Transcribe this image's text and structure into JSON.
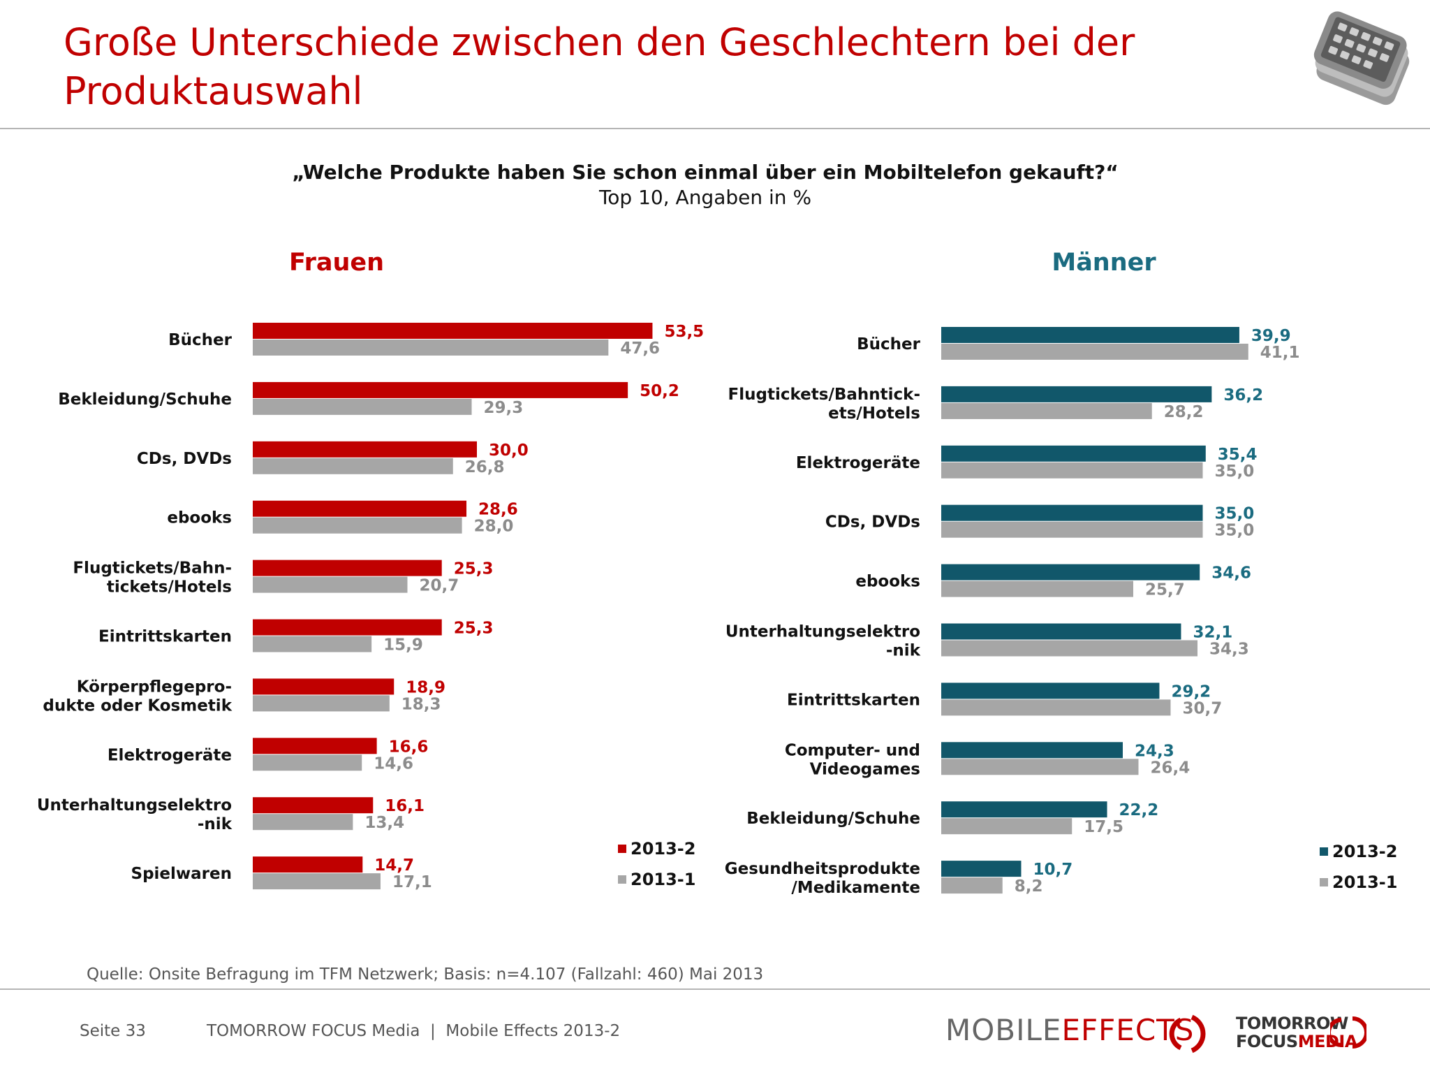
{
  "header": {
    "title": "Große Unterschiede zwischen den Geschlechtern bei der Produktauswahl"
  },
  "question": "„Welche Produkte haben Sie schon einmal über ein Mobiltelefon gekauft?“",
  "subtitle": "Top 10, Angaben in %",
  "colors": {
    "women_2013_2": "#c00000",
    "men_2013_2": "#11576a",
    "men_label": "#1a6b80",
    "series_2013_1": "#a6a6a6",
    "label_2013_1": "#8c8c8c"
  },
  "chart_data": [
    {
      "type": "bar",
      "orientation": "horizontal",
      "title": "Frauen",
      "categories": [
        "Bücher",
        "Bekleidung/Schuhe",
        "CDs, DVDs",
        "ebooks",
        "Flugtickets/Bahn-\ntickets/Hotels",
        "Eintrittskarten",
        "Körperpflegepro-\ndukte oder Kosmetik",
        "Elektrogeräte",
        "Unterhaltungselektro\n-nik",
        "Spielwaren"
      ],
      "series": [
        {
          "name": "2013-2",
          "values": [
            53.5,
            50.2,
            30.0,
            28.6,
            25.3,
            25.3,
            18.9,
            16.6,
            16.1,
            14.7
          ],
          "labels": [
            "53,5",
            "50,2",
            "30,0",
            "28,6",
            "25,3",
            "25,3",
            "18,9",
            "16,6",
            "16,1",
            "14,7"
          ]
        },
        {
          "name": "2013-1",
          "values": [
            47.6,
            29.3,
            26.8,
            28.0,
            20.7,
            15.9,
            18.3,
            14.6,
            13.4,
            17.1
          ],
          "labels": [
            "47,6",
            "29,3",
            "26,8",
            "28,0",
            "20,7",
            "15,9",
            "18,3",
            "14,6",
            "13,4",
            "17,1"
          ]
        }
      ],
      "xlim": [
        0,
        60
      ],
      "legend": "bottom-right"
    },
    {
      "type": "bar",
      "orientation": "horizontal",
      "title": "Männer",
      "categories": [
        "Bücher",
        "Flugtickets/Bahntick-\nets/Hotels",
        "Elektrogeräte",
        "CDs, DVDs",
        "ebooks",
        "Unterhaltungselektro\n-nik",
        "Eintrittskarten",
        "Computer- und\nVideogames",
        "Bekleidung/Schuhe",
        "Gesundheitsprodukte\n/Medikamente"
      ],
      "series": [
        {
          "name": "2013-2",
          "values": [
            39.9,
            36.2,
            35.4,
            35.0,
            34.6,
            32.1,
            29.2,
            24.3,
            22.2,
            10.7
          ],
          "labels": [
            "39,9",
            "36,2",
            "35,4",
            "35,0",
            "34,6",
            "32,1",
            "29,2",
            "24,3",
            "22,2",
            "10,7"
          ]
        },
        {
          "name": "2013-1",
          "values": [
            41.1,
            28.2,
            35.0,
            35.0,
            25.7,
            34.3,
            30.7,
            26.4,
            17.5,
            8.2
          ],
          "labels": [
            "41,1",
            "28,2",
            "35,0",
            "35,0",
            "25,7",
            "34,3",
            "30,7",
            "26,4",
            "17,5",
            "8,2"
          ]
        }
      ],
      "xlim": [
        0,
        60
      ],
      "legend": "bottom-right"
    }
  ],
  "footer": {
    "source": "Quelle: Onsite Befragung im TFM Netzwerk; Basis: n=4.107 (Fallzahl: 460) Mai 2013",
    "page": "Seite 33",
    "text": "TOMORROW FOCUS Media  |  Mobile Effects 2013-2",
    "logo_mobile": "MOBILE",
    "logo_effects": "EFFECTS",
    "logo_tf_line1": "TOMORROW",
    "logo_tf_focus": "FOCUS",
    "logo_tf_media": "MEDIA"
  }
}
